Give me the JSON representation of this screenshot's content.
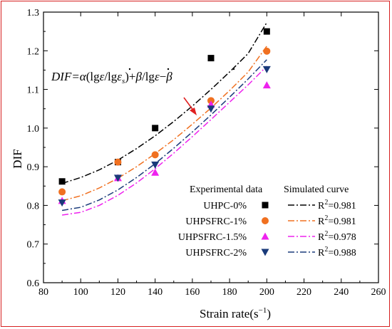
{
  "chart_data": {
    "type": "scatter",
    "xlabel": "Strain rate(s",
    "xlabel_sup": "−1",
    "xlabel_close": ")",
    "ylabel": "DIF",
    "xlim": [
      80,
      260
    ],
    "ylim": [
      0.6,
      1.3
    ],
    "xticks": [
      80,
      100,
      120,
      140,
      160,
      180,
      200,
      220,
      240,
      260
    ],
    "yticks": [
      0.6,
      0.7,
      0.8,
      0.9,
      1.0,
      1.1,
      1.2,
      1.3
    ],
    "xtick_labels": [
      "80",
      "100",
      "120",
      "140",
      "160",
      "180",
      "200",
      "220",
      "240",
      "260"
    ],
    "ytick_labels": [
      "0.6",
      "0.7",
      "0.8",
      "0.9",
      "1.0",
      "1.1",
      "1.2",
      "1.3"
    ],
    "legend_header_exp": "Experimental data",
    "legend_header_sim": "Simulated curve",
    "annotation": "DIF=α(lgε̇/lgε̇s)+β/lgε̇−β",
    "annotation_parts": {
      "p1": "DIF=",
      "p2": "α",
      "p3": "(lg",
      "p4": "ε",
      "p5": "/lg",
      "p6": "ε",
      "p7": "s",
      "p8": ")+",
      "p9": "β",
      "p10": "/lg",
      "p11": "ε",
      "p12": "−",
      "p13": "β"
    },
    "series": [
      {
        "name": "UHPC-0%",
        "marker": "square",
        "color": "#000000",
        "x": [
          90,
          120,
          140,
          170,
          200
        ],
        "y": [
          0.862,
          0.912,
          1.0,
          1.181,
          1.25
        ],
        "fit_x": [
          90,
          100,
          110,
          120,
          130,
          140,
          150,
          160,
          170,
          180,
          190,
          200
        ],
        "fit_y": [
          0.857,
          0.872,
          0.892,
          0.917,
          0.947,
          0.98,
          1.017,
          1.057,
          1.1,
          1.145,
          1.193,
          1.273
        ],
        "r2_prefix": "R",
        "r2_sup": "2",
        "r2_value": "=0.981"
      },
      {
        "name": "UHPSFRC-1%",
        "marker": "circle",
        "color": "#f07020",
        "x": [
          90,
          120,
          140,
          170,
          200
        ],
        "y": [
          0.835,
          0.912,
          0.931,
          1.071,
          1.199
        ],
        "fit_x": [
          90,
          100,
          110,
          120,
          130,
          140,
          150,
          160,
          170,
          180,
          190,
          200
        ],
        "fit_y": [
          0.812,
          0.825,
          0.845,
          0.87,
          0.9,
          0.934,
          0.97,
          1.01,
          1.052,
          1.097,
          1.145,
          1.212
        ],
        "r2_prefix": "R",
        "r2_sup": "2",
        "r2_value": "=0.981"
      },
      {
        "name": "UHPSFRC-1.5%",
        "marker": "triangle-up",
        "color": "#ee22ee",
        "x": [
          90,
          120,
          140,
          170,
          200
        ],
        "y": [
          0.812,
          0.871,
          0.885,
          1.061,
          1.111
        ],
        "fit_x": [
          90,
          100,
          110,
          120,
          130,
          140,
          150,
          160,
          170,
          180,
          190,
          200
        ],
        "fit_y": [
          0.775,
          0.782,
          0.8,
          0.826,
          0.858,
          0.895,
          0.935,
          0.978,
          1.022,
          1.067,
          1.112,
          1.16
        ],
        "r2_prefix": "R",
        "r2_sup": "2",
        "r2_value": "=0.978"
      },
      {
        "name": "UHPSFRC-2%",
        "marker": "triangle-down",
        "color": "#1a3a7a",
        "x": [
          90,
          120,
          140,
          170,
          200
        ],
        "y": [
          0.807,
          0.871,
          0.905,
          1.05,
          1.152
        ],
        "fit_x": [
          90,
          100,
          110,
          120,
          130,
          140,
          150,
          160,
          170,
          180,
          190,
          200
        ],
        "fit_y": [
          0.787,
          0.795,
          0.814,
          0.84,
          0.872,
          0.908,
          0.948,
          0.99,
          1.034,
          1.08,
          1.127,
          1.177
        ],
        "r2_prefix": "R",
        "r2_sup": "2",
        "r2_value": "=0.988"
      }
    ],
    "legend_placement": "lower-right",
    "grid": false,
    "arrow_color": "#e02020"
  }
}
